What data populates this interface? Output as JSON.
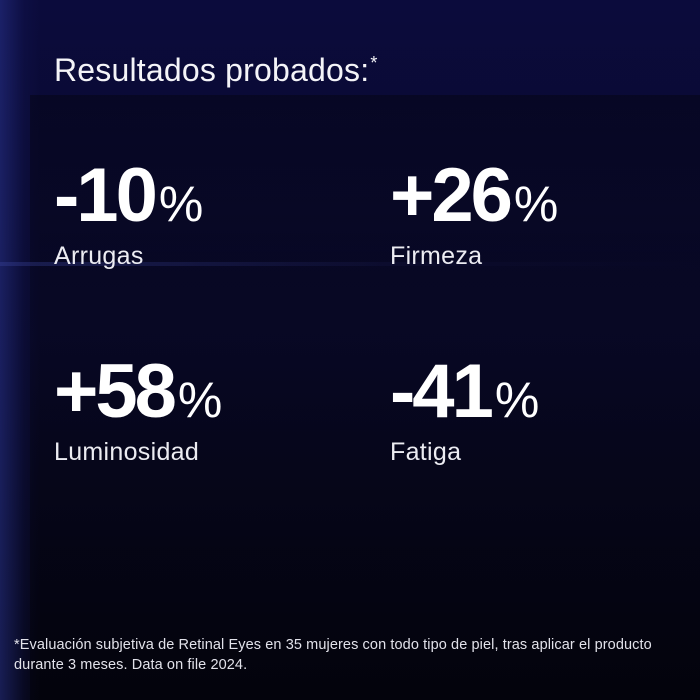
{
  "header": {
    "title": "Resultados probados:",
    "title_asterisk": "*"
  },
  "stats": [
    {
      "value": "-10",
      "unit": "%",
      "label": "Arrugas"
    },
    {
      "value": "+26",
      "unit": "%",
      "label": "Firmeza"
    },
    {
      "value": "+58",
      "unit": "%",
      "label": "Luminosidad"
    },
    {
      "value": "-41",
      "unit": "%",
      "label": "Fatiga"
    }
  ],
  "footnote": "*Evaluación subjetiva de Retinal Eyes en 35 mujeres con todo tipo de piel, tras aplicar el producto durante 3 meses. Data on file 2024.",
  "colors": {
    "background": "#080826",
    "text": "#ffffff"
  }
}
